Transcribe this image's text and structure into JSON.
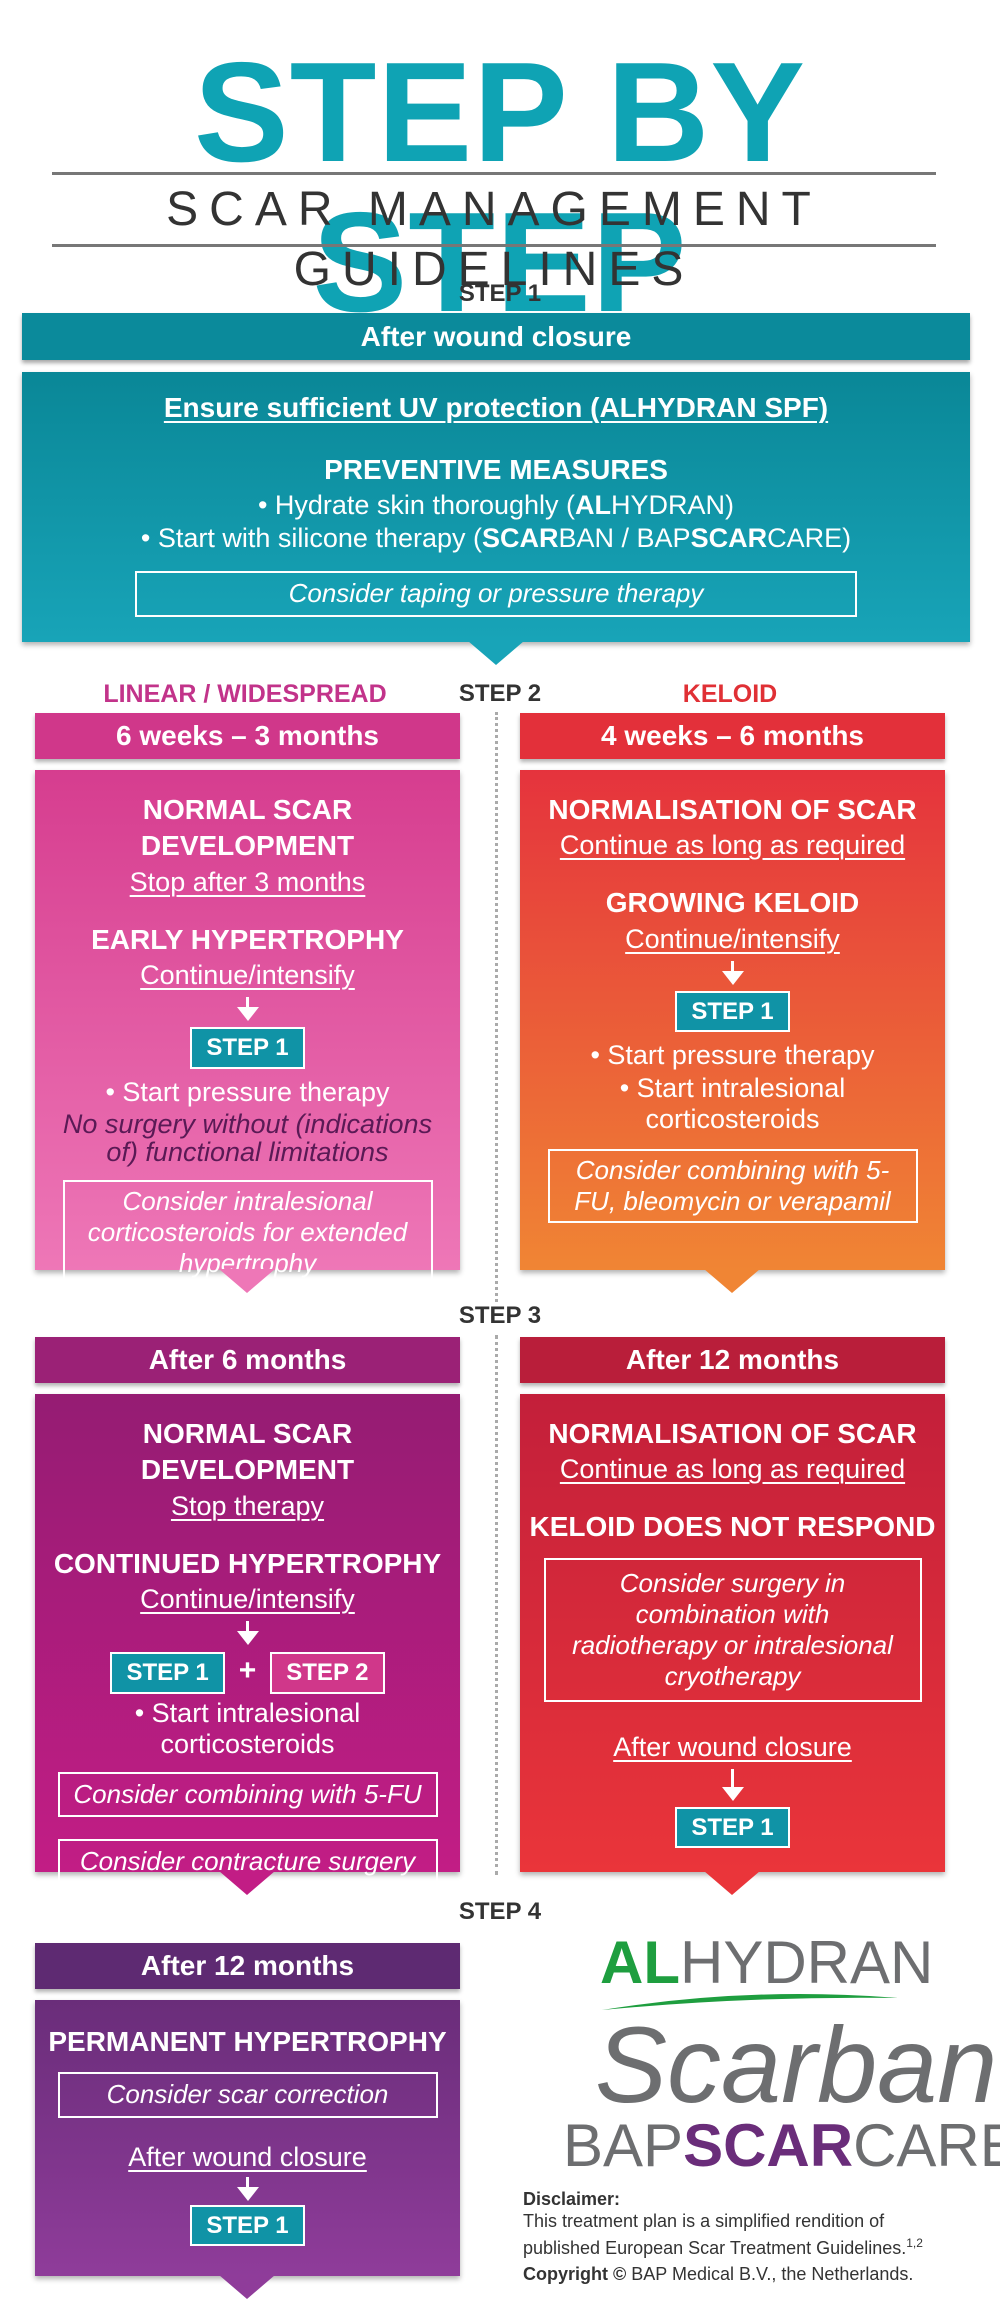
{
  "header": {
    "title": "STEP BY STEP",
    "subtitle": "SCAR MANAGEMENT GUIDELINES"
  },
  "step1": {
    "label": "STEP 1",
    "bar": "After wound closure",
    "uv": "Ensure sufficient UV protection  (ALHYDRAN SPF)",
    "prev_heading": "PREVENTIVE MEASURES",
    "bullet1_pre": "• Hydrate skin thoroughly  (",
    "bullet1_bold": "AL",
    "bullet1_mid": "HYDRAN)",
    "bullet2_pre": "• Start with silicone therapy  (",
    "bullet2_b1": "SCAR",
    "bullet2_m1": "BAN / BAP",
    "bullet2_b2": "SCAR",
    "bullet2_m2": "CARE)",
    "consider": "Consider taping or pressure therapy"
  },
  "step2": {
    "label": "STEP 2",
    "left_head": "LINEAR / WIDESPREAD",
    "right_head": "KELOID",
    "left": {
      "bar": "6 weeks – 3 months",
      "h1": "NORMAL SCAR DEVELOPMENT",
      "s1": "Stop after 3 months",
      "h2": "EARLY HYPERTROPHY",
      "s2": "Continue/intensify",
      "tag": "STEP 1",
      "b1": "• Start pressure therapy",
      "note": "No surgery without (indications of) functional limitations",
      "frame": "Consider intralesional corticosteroids for extended hypertrophy"
    },
    "right": {
      "bar": "4 weeks – 6 months",
      "h1": "NORMALISATION OF SCAR",
      "s1": "Continue as long as required",
      "h2": "GROWING KELOID",
      "s2": "Continue/intensify",
      "tag": "STEP 1",
      "b1": "• Start pressure therapy",
      "b2": "• Start intralesional corticosteroids",
      "frame": "Consider combining with 5-FU, bleomycin or verapamil"
    }
  },
  "step3": {
    "label": "STEP 3",
    "left": {
      "bar": "After 6 months",
      "h1": "NORMAL SCAR DEVELOPMENT",
      "s1": "Stop therapy",
      "h2": "CONTINUED HYPERTROPHY",
      "s2": "Continue/intensify",
      "tag1": "STEP 1",
      "plus": "+",
      "tag2": "STEP 2",
      "b1": "• Start intralesional corticosteroids",
      "frame1": "Consider combining with 5-FU",
      "frame2": "Consider contracture surgery"
    },
    "right": {
      "bar": "After 12 months",
      "h1": "NORMALISATION OF SCAR",
      "s1": "Continue as long as required",
      "h2": "KELOID DOES NOT RESPOND",
      "frame": "Consider surgery in combination with radiotherapy or intralesional cryotherapy",
      "after": "After wound closure",
      "tag": "STEP 1"
    }
  },
  "step4": {
    "label": "STEP 4",
    "bar": "After 12 months",
    "h1": "PERMANENT HYPERTROPHY",
    "frame": "Consider scar correction",
    "after": "After wound closure",
    "tag": "STEP 1"
  },
  "logos": {
    "alhydran_bold": "AL",
    "alhydran_rest": "HYDRAN",
    "scarban": "Scarban",
    "bap1": "BAP",
    "bap2": "SCAR",
    "bap3": "CARE"
  },
  "disclaimer": {
    "title": "Disclaimer:",
    "text": "This treatment plan is a simplified rendition of published European Scar Treatment Guidelines.",
    "sup": "1,2",
    "copyright_bold": "Copyright ©",
    "copyright_rest": " BAP Medical B.V., the Netherlands."
  },
  "colors": {
    "teal": "#0fa3b4",
    "pink": "#d63d8f",
    "red": "#e3303a",
    "purple": "#9a1c72",
    "violet": "#6a3182"
  }
}
